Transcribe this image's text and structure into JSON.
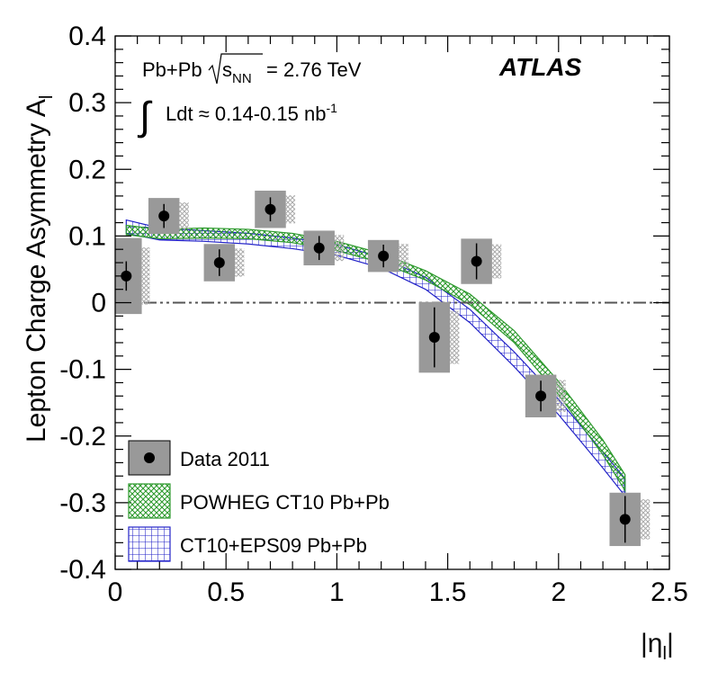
{
  "chart_data": {
    "type": "scatter",
    "ylabel": "Lepton Charge Asymmetry A",
    "ylabel_sub": "l",
    "xlabel": "|η",
    "xlabel_sub": "l",
    "xlabel_close": "|",
    "xlim": [
      0,
      2.5
    ],
    "ylim": [
      -0.4,
      0.4
    ],
    "x_ticks": [
      0,
      0.5,
      1,
      1.5,
      2,
      2.5
    ],
    "x_tick_labels": [
      "0",
      "0.5",
      "1",
      "1.5",
      "2",
      "2.5"
    ],
    "y_ticks": [
      -0.4,
      -0.3,
      -0.2,
      -0.1,
      0,
      0.1,
      0.2,
      0.3,
      0.4
    ],
    "y_tick_labels": [
      "-0.4",
      "-0.3",
      "-0.2",
      "-0.1",
      "0",
      "0.1",
      "0.2",
      "0.3",
      "0.4"
    ],
    "reference_line_y": 0,
    "annotations": {
      "experiment": "ATLAS",
      "system": "Pb+Pb",
      "sqrt_s_label": "s",
      "sqrt_s_sub": "NN",
      "energy": "= 2.76 TeV",
      "lumi_label": "Ldt ≈ 0.14-0.15 nb",
      "lumi_exp": "-1"
    },
    "legend": {
      "placement": "bottom-left",
      "entries": [
        {
          "label": "Data 2011",
          "style": "data"
        },
        {
          "label": "POWHEG CT10 Pb+Pb",
          "style": "powheg"
        },
        {
          "label": "CT10+EPS09 Pb+Pb",
          "style": "eps09"
        }
      ]
    },
    "colors": {
      "powheg": "#2e9a2e",
      "eps09": "#2323c8",
      "data_box": "#999999",
      "marker": "#000000",
      "reference_line": "#555555"
    },
    "data_points": [
      {
        "x": 0.05,
        "xlo": 0.0,
        "xhi": 0.12,
        "y": 0.04,
        "stat": 0.022,
        "syst": 0.057
      },
      {
        "x": 0.22,
        "xlo": 0.15,
        "xhi": 0.29,
        "y": 0.13,
        "stat": 0.018,
        "syst": 0.027
      },
      {
        "x": 0.47,
        "xlo": 0.4,
        "xhi": 0.54,
        "y": 0.06,
        "stat": 0.02,
        "syst": 0.028
      },
      {
        "x": 0.7,
        "xlo": 0.63,
        "xhi": 0.77,
        "y": 0.14,
        "stat": 0.018,
        "syst": 0.028
      },
      {
        "x": 0.92,
        "xlo": 0.85,
        "xhi": 0.99,
        "y": 0.082,
        "stat": 0.018,
        "syst": 0.026
      },
      {
        "x": 1.21,
        "xlo": 1.14,
        "xhi": 1.28,
        "y": 0.07,
        "stat": 0.017,
        "syst": 0.024
      },
      {
        "x": 1.44,
        "xlo": 1.37,
        "xhi": 1.51,
        "y": -0.052,
        "stat": 0.045,
        "syst": 0.053
      },
      {
        "x": 1.63,
        "xlo": 1.56,
        "xhi": 1.7,
        "y": 0.062,
        "stat": 0.027,
        "syst": 0.034
      },
      {
        "x": 1.92,
        "xlo": 1.85,
        "xhi": 1.99,
        "y": -0.14,
        "stat": 0.023,
        "syst": 0.032
      },
      {
        "x": 2.3,
        "xlo": 2.23,
        "xhi": 2.37,
        "y": -0.325,
        "stat": 0.035,
        "syst": 0.04
      }
    ],
    "powheg_band": [
      {
        "x": 0.05,
        "lo": 0.102,
        "hi": 0.116
      },
      {
        "x": 0.2,
        "lo": 0.096,
        "hi": 0.11
      },
      {
        "x": 0.4,
        "lo": 0.097,
        "hi": 0.112
      },
      {
        "x": 0.6,
        "lo": 0.096,
        "hi": 0.11
      },
      {
        "x": 0.8,
        "lo": 0.09,
        "hi": 0.104
      },
      {
        "x": 1.0,
        "lo": 0.078,
        "hi": 0.092
      },
      {
        "x": 1.2,
        "lo": 0.06,
        "hi": 0.074
      },
      {
        "x": 1.4,
        "lo": 0.034,
        "hi": 0.048
      },
      {
        "x": 1.6,
        "lo": -0.003,
        "hi": 0.013
      },
      {
        "x": 1.8,
        "lo": -0.06,
        "hi": -0.042
      },
      {
        "x": 2.0,
        "lo": -0.138,
        "hi": -0.118
      },
      {
        "x": 2.2,
        "lo": -0.228,
        "hi": -0.206
      },
      {
        "x": 2.3,
        "lo": -0.282,
        "hi": -0.258
      }
    ],
    "eps09_band": [
      {
        "x": 0.05,
        "lo": 0.104,
        "hi": 0.124
      },
      {
        "x": 0.2,
        "lo": 0.094,
        "hi": 0.112
      },
      {
        "x": 0.4,
        "lo": 0.092,
        "hi": 0.108
      },
      {
        "x": 0.6,
        "lo": 0.088,
        "hi": 0.104
      },
      {
        "x": 0.8,
        "lo": 0.081,
        "hi": 0.097
      },
      {
        "x": 1.0,
        "lo": 0.071,
        "hi": 0.087
      },
      {
        "x": 1.2,
        "lo": 0.052,
        "hi": 0.068
      },
      {
        "x": 1.4,
        "lo": 0.02,
        "hi": 0.038
      },
      {
        "x": 1.6,
        "lo": -0.03,
        "hi": -0.01
      },
      {
        "x": 1.8,
        "lo": -0.096,
        "hi": -0.074
      },
      {
        "x": 2.0,
        "lo": -0.168,
        "hi": -0.145
      },
      {
        "x": 2.2,
        "lo": -0.248,
        "hi": -0.224
      },
      {
        "x": 2.3,
        "lo": -0.29,
        "hi": -0.264
      }
    ]
  }
}
